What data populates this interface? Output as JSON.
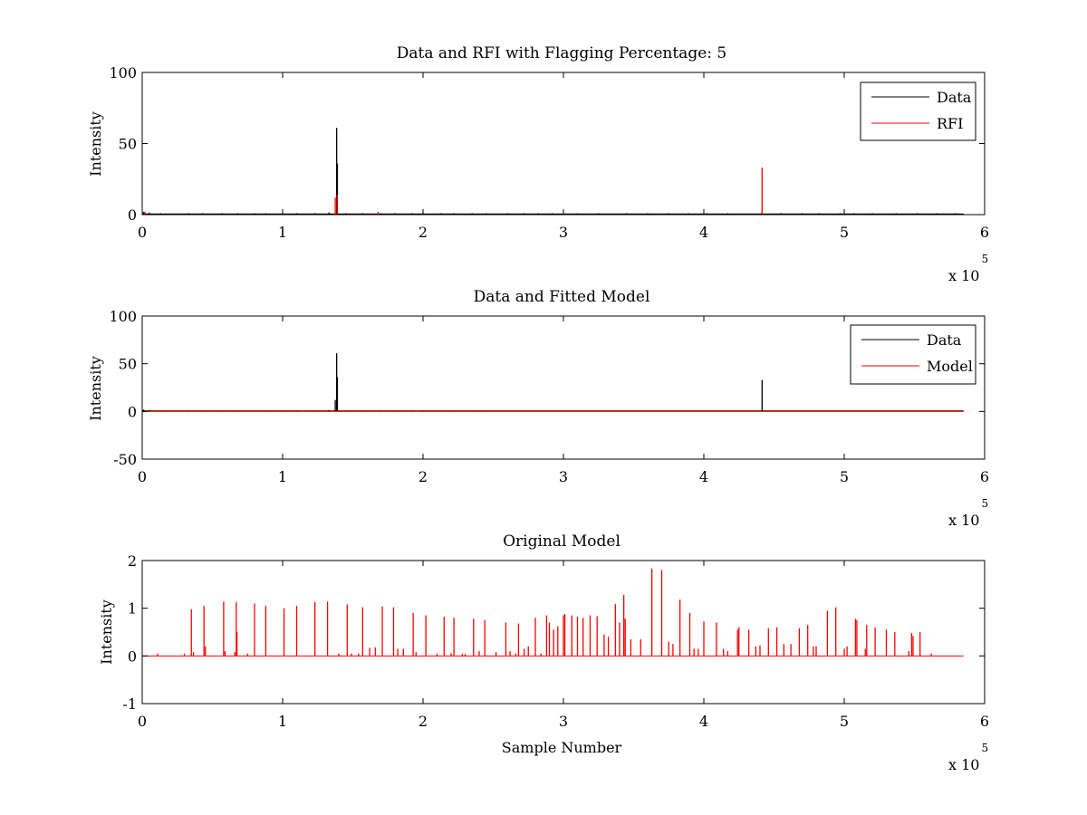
{
  "figure": {
    "background": "#ffffff"
  },
  "chart_data": [
    {
      "type": "line",
      "title": "Data and RFI with Flagging Percentage: 5",
      "xlabel": "",
      "ylabel": "Intensity",
      "xlim": [
        0,
        600000
      ],
      "ylim": [
        0,
        100
      ],
      "x_exponent_label": "x 10",
      "x_exponent_power": "5",
      "xticks": [
        0,
        100000,
        200000,
        300000,
        400000,
        500000,
        600000
      ],
      "xtick_labels": [
        "0",
        "1",
        "2",
        "3",
        "4",
        "5",
        "6"
      ],
      "yticks": [
        0,
        50,
        100
      ],
      "ytick_labels": [
        "0",
        "50",
        "100"
      ],
      "legend_position": "top-right",
      "grid": false,
      "baseline_end": 585000,
      "series": [
        {
          "name": "Data",
          "color": "#000000",
          "baseline": 0.5,
          "spikes": [
            [
              1000,
              2
            ],
            [
              5000,
              1.5
            ],
            [
              13000,
              1
            ],
            [
              33000,
              1
            ],
            [
              43000,
              1
            ],
            [
              57000,
              1
            ],
            [
              68000,
              1
            ],
            [
              80000,
              1
            ],
            [
              88000,
              1
            ],
            [
              100000,
              1
            ],
            [
              110000,
              1
            ],
            [
              123000,
              1
            ],
            [
              133000,
              1.5
            ],
            [
              138500,
              61
            ],
            [
              139000,
              36
            ],
            [
              145000,
              1
            ],
            [
              157000,
              1
            ],
            [
              170000,
              1
            ],
            [
              180000,
              1
            ],
            [
              192000,
              1
            ],
            [
              200000,
              1
            ],
            [
              213000,
              1
            ],
            [
              222000,
              1
            ],
            [
              235000,
              1
            ],
            [
              245000,
              1
            ],
            [
              260000,
              1
            ],
            [
              272000,
              1
            ],
            [
              282000,
              1
            ],
            [
              292000,
              1
            ],
            [
              310000,
              1
            ],
            [
              325000,
              1
            ],
            [
              345000,
              1
            ],
            [
              360000,
              1
            ],
            [
              375000,
              1
            ],
            [
              389000,
              1
            ],
            [
              402000,
              1
            ],
            [
              417000,
              1
            ],
            [
              441000,
              1
            ],
            [
              455000,
              1
            ],
            [
              470000,
              1
            ],
            [
              482000,
              1
            ],
            [
              497000,
              1
            ],
            [
              507000,
              1
            ],
            [
              520000,
              1
            ],
            [
              537000,
              1
            ],
            [
              552000,
              1
            ],
            [
              566000,
              1
            ],
            [
              579000,
              1
            ]
          ]
        },
        {
          "name": "RFI",
          "color": "#ff0000",
          "baseline": 0,
          "spikes": [
            [
              2000,
              2
            ],
            [
              137500,
              12
            ],
            [
              138800,
              14
            ],
            [
              168000,
              2
            ],
            [
              385000,
              1
            ],
            [
              441500,
              33
            ]
          ]
        }
      ]
    },
    {
      "type": "line",
      "title": "Data and Fitted Model",
      "xlabel": "",
      "ylabel": "Intensity",
      "xlim": [
        0,
        600000
      ],
      "ylim": [
        -50,
        100
      ],
      "x_exponent_label": "x 10",
      "x_exponent_power": "5",
      "xticks": [
        0,
        100000,
        200000,
        300000,
        400000,
        500000,
        600000
      ],
      "xtick_labels": [
        "0",
        "1",
        "2",
        "3",
        "4",
        "5",
        "6"
      ],
      "yticks": [
        -50,
        0,
        50,
        100
      ],
      "ytick_labels": [
        "-50",
        "0",
        "50",
        "100"
      ],
      "legend_position": "top-right",
      "grid": false,
      "baseline_end": 585000,
      "series": [
        {
          "name": "Data",
          "color": "#000000",
          "baseline": 0.5,
          "spikes": [
            [
              1000,
              2
            ],
            [
              5000,
              1.5
            ],
            [
              13000,
              1
            ],
            [
              33000,
              1
            ],
            [
              43000,
              1
            ],
            [
              57000,
              1
            ],
            [
              68000,
              1
            ],
            [
              80000,
              1
            ],
            [
              88000,
              1
            ],
            [
              100000,
              1
            ],
            [
              110000,
              1
            ],
            [
              123000,
              1
            ],
            [
              133000,
              1.5
            ],
            [
              137500,
              12
            ],
            [
              138500,
              61
            ],
            [
              139000,
              36
            ],
            [
              145000,
              1
            ],
            [
              157000,
              1
            ],
            [
              170000,
              1
            ],
            [
              180000,
              1
            ],
            [
              192000,
              1
            ],
            [
              200000,
              1
            ],
            [
              213000,
              1
            ],
            [
              222000,
              1
            ],
            [
              235000,
              1
            ],
            [
              245000,
              1
            ],
            [
              441500,
              33
            ]
          ]
        },
        {
          "name": "Model",
          "color": "#ff0000",
          "baseline": 0,
          "spikes": []
        }
      ]
    },
    {
      "type": "line",
      "title": "Original Model",
      "xlabel": "Sample Number",
      "ylabel": "Intensity",
      "xlim": [
        0,
        600000
      ],
      "ylim": [
        -1,
        2
      ],
      "x_exponent_label": "x 10",
      "x_exponent_power": "5",
      "xticks": [
        0,
        100000,
        200000,
        300000,
        400000,
        500000,
        600000
      ],
      "xtick_labels": [
        "0",
        "1",
        "2",
        "3",
        "4",
        "5",
        "6"
      ],
      "yticks": [
        -1,
        0,
        1,
        2
      ],
      "ytick_labels": [
        "-1",
        "0",
        "1",
        "2"
      ],
      "legend_position": "none",
      "grid": false,
      "baseline_end": 585000,
      "series": [
        {
          "color": "#ff0000",
          "baseline": 0,
          "spikes": [
            [
              11000,
              0.05
            ],
            [
              30000,
              0.05
            ],
            [
              35000,
              0.98
            ],
            [
              36500,
              0.08
            ],
            [
              44000,
              1.05
            ],
            [
              45000,
              0.2
            ],
            [
              58000,
              1.14
            ],
            [
              59000,
              0.1
            ],
            [
              66000,
              0.08
            ],
            [
              67000,
              1.13
            ],
            [
              67500,
              0.5
            ],
            [
              75000,
              0.05
            ],
            [
              80000,
              1.1
            ],
            [
              88000,
              1.05
            ],
            [
              101000,
              1.0
            ],
            [
              110000,
              1.05
            ],
            [
              123000,
              1.13
            ],
            [
              132000,
              1.14
            ],
            [
              140000,
              0.05
            ],
            [
              146000,
              1.08
            ],
            [
              149000,
              0.05
            ],
            [
              154000,
              0.05
            ],
            [
              157000,
              1.02
            ],
            [
              162000,
              0.17
            ],
            [
              166000,
              0.18
            ],
            [
              171000,
              1.04
            ],
            [
              179000,
              1.02
            ],
            [
              182000,
              0.15
            ],
            [
              186000,
              0.15
            ],
            [
              193000,
              0.9
            ],
            [
              195000,
              0.08
            ],
            [
              202000,
              0.85
            ],
            [
              210000,
              0.05
            ],
            [
              215000,
              0.82
            ],
            [
              220000,
              0.06
            ],
            [
              222000,
              0.8
            ],
            [
              228000,
              0.05
            ],
            [
              230000,
              0.04
            ],
            [
              236000,
              0.78
            ],
            [
              240000,
              0.1
            ],
            [
              244000,
              0.75
            ],
            [
              252000,
              0.08
            ],
            [
              259000,
              0.7
            ],
            [
              262000,
              0.1
            ],
            [
              266000,
              0.05
            ],
            [
              268000,
              0.68
            ],
            [
              272000,
              0.15
            ],
            [
              275000,
              0.2
            ],
            [
              280000,
              0.8
            ],
            [
              284000,
              0.05
            ],
            [
              288000,
              0.85
            ],
            [
              290000,
              0.7
            ],
            [
              293000,
              0.55
            ],
            [
              296000,
              0.62
            ],
            [
              300000,
              0.85
            ],
            [
              301000,
              0.88
            ],
            [
              306000,
              0.85
            ],
            [
              310000,
              0.82
            ],
            [
              314000,
              0.8
            ],
            [
              319000,
              0.85
            ],
            [
              324000,
              0.83
            ],
            [
              329000,
              0.45
            ],
            [
              332000,
              0.4
            ],
            [
              337000,
              1.09
            ],
            [
              340000,
              0.7
            ],
            [
              343000,
              1.28
            ],
            [
              344000,
              0.78
            ],
            [
              348000,
              0.35
            ],
            [
              355000,
              0.35
            ],
            [
              363000,
              1.83
            ],
            [
              370000,
              1.8
            ],
            [
              375000,
              0.3
            ],
            [
              378000,
              0.25
            ],
            [
              383000,
              1.18
            ],
            [
              390000,
              0.9
            ],
            [
              393000,
              0.15
            ],
            [
              396000,
              0.15
            ],
            [
              400000,
              0.72
            ],
            [
              409000,
              0.7
            ],
            [
              414000,
              0.15
            ],
            [
              417000,
              0.1
            ],
            [
              424000,
              0.55
            ],
            [
              425000,
              0.6
            ],
            [
              432000,
              0.55
            ],
            [
              437000,
              0.2
            ],
            [
              440000,
              0.22
            ],
            [
              446000,
              0.58
            ],
            [
              452000,
              0.6
            ],
            [
              457000,
              0.25
            ],
            [
              462000,
              0.25
            ],
            [
              468000,
              0.58
            ],
            [
              474000,
              0.65
            ],
            [
              478000,
              0.2
            ],
            [
              480000,
              0.2
            ],
            [
              488000,
              0.95
            ],
            [
              494000,
              1.02
            ],
            [
              500000,
              0.15
            ],
            [
              502000,
              0.2
            ],
            [
              508000,
              0.78
            ],
            [
              509000,
              0.75
            ],
            [
              515000,
              0.15
            ],
            [
              516000,
              0.65
            ],
            [
              522000,
              0.6
            ],
            [
              530000,
              0.55
            ],
            [
              536000,
              0.5
            ],
            [
              546000,
              0.1
            ],
            [
              548000,
              0.48
            ],
            [
              549000,
              0.42
            ],
            [
              554000,
              0.5
            ],
            [
              562000,
              0.05
            ]
          ]
        }
      ]
    }
  ]
}
